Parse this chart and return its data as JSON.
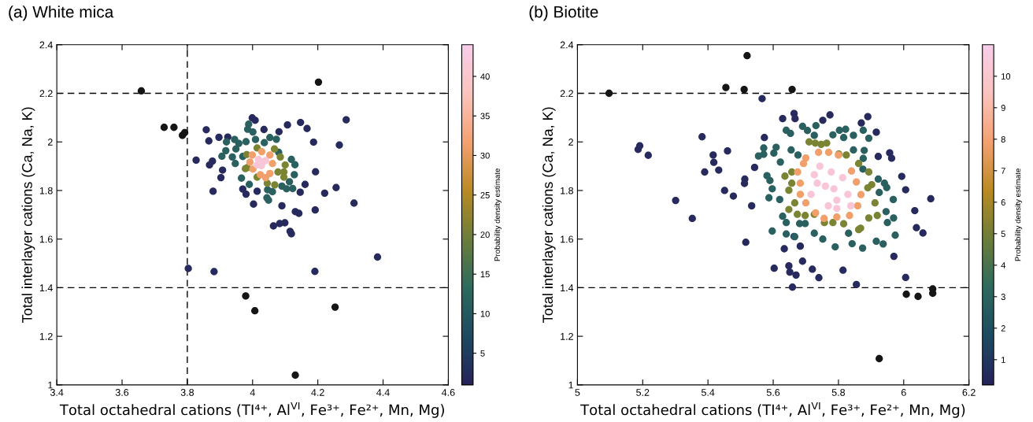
{
  "chart_data": [
    {
      "type": "scatter",
      "title": "(a) White mica",
      "xlabel": "Total octahedral cations (TI⁴⁺, Al$^{VI}$, Fe³⁺, Fe²⁺, Mn, Mg)",
      "ylabel": "Total interlayer cations (Ca, Na, K)",
      "clabel": "Probability density estimate",
      "xlim": [
        3.4,
        4.6
      ],
      "xticks": [
        3.4,
        3.6,
        3.8,
        4,
        4.2,
        4.4,
        4.6
      ],
      "ylim": [
        1,
        2.4
      ],
      "yticks": [
        1,
        1.2,
        1.4,
        1.6,
        1.8,
        2,
        2.2,
        2.4
      ],
      "clim": [
        1,
        44
      ],
      "cticks": [
        5,
        10,
        15,
        20,
        25,
        30,
        35,
        40
      ],
      "grid": false,
      "marker": "circle",
      "ref_lines": [
        {
          "axis": "y",
          "value": 2.2,
          "color": "#000000",
          "line_style": "dashed"
        },
        {
          "axis": "y",
          "value": 1.4,
          "color": "#000000",
          "line_style": "dashed"
        },
        {
          "axis": "x",
          "value": 3.8,
          "color": "#000000",
          "line_style": "dashed"
        }
      ],
      "series": [
        {
          "x": [
            3.999,
            4.008,
            4.287,
            4.147,
            4.107,
            4.167,
            3.858,
            4.035,
            4.081,
            3.897,
            3.924,
            3.866,
            4.187,
            4.266,
            3.827,
            3.877,
            3.868,
            3.908,
            3.903,
            4.193,
            3.879,
            4.161,
            4.146,
            4.221,
            4.256,
            4.311,
            4.003,
            4.09,
            4.192,
            4.131,
            4.142,
            4.064,
            4.083,
            4.099,
            4.115,
            4.119,
            4.383,
            3.803,
            3.882,
            4.191,
            4.014,
            3.98,
            3.97,
            3.988,
            3.985,
            4.001,
            4.009,
            4.053,
            4.073,
            3.945,
            3.92,
            3.958,
            3.98,
            3.918,
            3.949,
            3.938,
            3.947,
            3.97,
            3.906,
            3.966,
            3.99,
            4.113,
            4.119,
            4.13,
            4.128,
            4.09,
            4.104,
            4.123,
            4.046,
            4.061,
            4.044,
            4.049,
            4.08,
            4.036,
            3.982,
            4.014,
            4.067,
            4.085,
            4.1,
            4.096,
            4.096,
            4.014,
            3.984,
            4.045,
            4.068,
            4.078,
            3.978,
            3.999,
            4.028,
            4.053,
            4.061,
            4.053,
            4.024,
            4.001,
            3.992,
            4.04,
            4.018,
            4.031,
            4.014,
            4.027,
            4.04
          ],
          "values": [
            2.099,
            2.089,
            2.091,
            2.08,
            2.07,
            2.055,
            2.05,
            2.051,
            2.042,
            2.019,
            2.02,
            2.004,
            1.999,
            1.987,
            1.925,
            1.921,
            1.905,
            1.884,
            1.853,
            1.877,
            1.797,
            1.825,
            1.793,
            1.789,
            1.812,
            1.748,
            1.744,
            1.737,
            1.72,
            1.713,
            1.706,
            1.654,
            1.664,
            1.667,
            1.632,
            1.622,
            1.526,
            1.479,
            1.466,
            1.467,
            1.797,
            1.785,
            1.806,
            2.073,
            2.052,
            2.041,
            2.01,
            2.018,
            2.011,
            2.01,
            2.0,
            1.994,
            2.001,
            1.964,
            1.971,
            1.938,
            1.911,
            1.94,
            1.941,
            1.851,
            1.825,
            1.836,
            1.928,
            1.906,
            1.865,
            1.818,
            1.807,
            1.808,
            1.803,
            1.795,
            1.77,
            1.76,
            1.957,
            1.997,
            1.948,
            1.975,
            1.971,
            1.938,
            1.905,
            1.876,
            1.855,
            1.855,
            1.894,
            1.83,
            1.823,
            1.876,
            1.89,
            1.946,
            1.96,
            1.946,
            1.911,
            1.87,
            1.865,
            1.888,
            1.917,
            1.853,
            1.928,
            1.917,
            1.905,
            1.902,
            1.923
          ],
          "colors": [
            "#272a5c",
            "#272a5c",
            "#272a5c",
            "#272a5c",
            "#272a5c",
            "#272a5c",
            "#272a5c",
            "#272a5c",
            "#272a5c",
            "#272a5c",
            "#272a5c",
            "#272a5c",
            "#272a5c",
            "#272a5c",
            "#272a5c",
            "#272a5c",
            "#272a5c",
            "#272a5c",
            "#272a5c",
            "#272a5c",
            "#272a5c",
            "#272a5c",
            "#272a5c",
            "#272a5c",
            "#272a5c",
            "#272a5c",
            "#272a5c",
            "#272a5c",
            "#272a5c",
            "#272a5c",
            "#272a5c",
            "#272a5c",
            "#272a5c",
            "#272a5c",
            "#272a5c",
            "#272a5c",
            "#272a5c",
            "#272a5c",
            "#272a5c",
            "#272a5c",
            "#272a5c",
            "#272a5c",
            "#272a5c",
            "#2a6160",
            "#2a6160",
            "#2a6160",
            "#2a6160",
            "#2a6160",
            "#2a6160",
            "#2a6160",
            "#2a6160",
            "#2a6160",
            "#2a6160",
            "#2a6160",
            "#2a6160",
            "#2a6160",
            "#2a6160",
            "#2a6160",
            "#2a6160",
            "#2a6160",
            "#2a6160",
            "#2a6160",
            "#2a6160",
            "#2a6160",
            "#2a6160",
            "#2a6160",
            "#2a6160",
            "#2a6160",
            "#2a6160",
            "#2a6160",
            "#2a6160",
            "#2a6160",
            "#2a6160",
            "#2a6160",
            "#7b8433",
            "#7b8433",
            "#7b8433",
            "#7b8433",
            "#7b8433",
            "#7b8433",
            "#7b8433",
            "#7b8433",
            "#7b8433",
            "#7b8433",
            "#7b8433",
            "#7b8433",
            "#7b8433",
            "#f2a06b",
            "#f2a06b",
            "#f2a06b",
            "#f2a06b",
            "#f2a06b",
            "#f2a06b",
            "#f2a06b",
            "#f2a06b",
            "#f2a06b",
            "#f9c6d8",
            "#f9c6d8",
            "#f9c6d8",
            "#f9c6d8",
            "#f9c6d8"
          ]
        },
        {
          "color": "#151515",
          "x": [
            3.659,
            4.202,
            3.729,
            3.759,
            3.785,
            3.792,
            3.979,
            4.007,
            4.253,
            4.131
          ],
          "values": [
            2.21,
            2.246,
            2.06,
            2.06,
            2.027,
            2.038,
            1.366,
            1.305,
            1.32,
            1.04
          ]
        }
      ]
    },
    {
      "type": "scatter",
      "title": "(b) Biotite",
      "xlabel": "Total octahedral cations (TI⁴⁺, Al$^{VI}$, Fe³⁺, Fe²⁺, Mn, Mg)",
      "ylabel": "Total interlayer cations (Ca, Na, K)",
      "clabel": "Probability density estimate",
      "xlim": [
        5,
        6.2
      ],
      "xticks": [
        5,
        5.2,
        5.4,
        5.6,
        5.8,
        6,
        6.2
      ],
      "ylim": [
        1,
        2.4
      ],
      "yticks": [
        1,
        1.2,
        1.4,
        1.6,
        1.8,
        2,
        2.2,
        2.4
      ],
      "clim": [
        0.2,
        11
      ],
      "cticks": [
        1,
        2,
        3,
        4,
        5,
        6,
        7,
        8,
        9,
        10
      ],
      "grid": false,
      "marker": "circle",
      "ref_lines": [
        {
          "axis": "y",
          "value": 2.2,
          "color": "#000000",
          "line_style": "dashed"
        },
        {
          "axis": "y",
          "value": 1.4,
          "color": "#000000",
          "line_style": "dashed"
        }
      ],
      "series": [
        {
          "x": [
            5.566,
            5.186,
            5.191,
            5.217,
            5.382,
            5.416,
            5.418,
            5.433,
            5.46,
            5.39,
            5.301,
            5.352,
            5.451,
            5.478,
            5.516,
            5.534,
            5.543,
            5.573,
            5.629,
            5.664,
            5.667,
            5.774,
            5.752,
            5.89,
            5.87,
            5.916,
            5.922,
            5.957,
            5.963,
            5.994,
            6.006,
            6.083,
            6.034,
            6.039,
            6.059,
            5.97,
            6.006,
            5.855,
            5.814,
            5.74,
            5.72,
            5.69,
            5.67,
            5.651,
            5.648,
            5.659,
            5.603,
            5.634,
            5.683,
            5.664,
            5.513,
            5.512,
            5.69,
            5.705,
            5.731,
            5.803,
            5.822,
            5.783,
            5.816,
            5.846,
            5.876,
            5.893,
            5.64,
            5.653,
            5.726,
            5.571,
            5.609,
            5.602,
            5.555,
            5.571,
            5.655,
            5.676,
            5.846,
            5.879,
            5.876,
            5.922,
            5.941,
            5.948,
            5.925,
            5.968,
            5.581,
            5.59,
            5.597,
            5.587,
            5.62,
            5.629,
            5.64,
            5.64,
            5.597,
            5.666,
            5.726,
            5.752,
            5.79,
            5.831,
            5.842,
            5.874,
            5.916,
            5.937,
            5.974,
            5.969,
            5.946,
            5.95,
            5.681,
            5.698,
            5.622,
            5.875,
            5.71,
            5.729,
            5.747,
            5.764,
            5.801,
            5.824,
            5.862,
            5.893,
            5.902,
            5.89,
            5.912,
            5.919,
            5.893,
            5.868,
            5.657,
            5.636,
            5.657,
            5.648,
            5.666,
            5.648,
            5.674,
            5.698,
            5.726,
            5.757,
            5.783,
            5.816,
            5.862,
            5.7,
            5.739,
            5.77,
            5.8,
            5.84,
            5.855,
            5.869,
            5.859,
            5.834,
            5.795,
            5.756,
            5.73,
            5.7,
            5.683,
            5.683,
            5.675,
            5.693,
            5.743,
            5.778,
            5.813,
            5.786,
            5.76,
            5.735,
            5.795,
            5.829,
            5.769,
            5.716,
            5.838,
            5.795,
            5.726
          ],
          "values": [
            2.178,
            1.969,
            1.984,
            1.945,
            2.021,
            1.946,
            1.916,
            1.884,
            1.963,
            1.876,
            1.759,
            1.685,
            1.8,
            1.777,
            1.587,
            1.737,
            1.895,
            2.018,
            2.096,
            2.117,
            2.096,
            2.111,
            2.089,
            2.104,
            2.078,
            2.04,
            1.94,
            1.955,
            1.933,
            1.858,
            1.803,
            1.766,
            1.717,
            1.647,
            1.625,
            1.529,
            1.442,
            1.413,
            1.472,
            1.441,
            1.476,
            1.509,
            1.452,
            1.464,
            1.49,
            1.402,
            1.48,
            1.56,
            1.571,
            1.611,
            1.847,
            1.829,
            2.064,
            2.047,
            2.067,
            2.048,
            2.052,
            2.029,
            2.018,
            2.027,
            2.048,
            2.015,
            2.048,
            2.035,
            2.027,
            1.975,
            1.978,
            1.954,
            1.942,
            1.949,
            1.967,
            1.946,
            1.967,
            1.965,
            1.932,
            1.847,
            1.83,
            1.812,
            1.792,
            1.763,
            1.861,
            1.841,
            1.807,
            1.77,
            1.763,
            1.694,
            1.668,
            1.621,
            1.633,
            1.61,
            1.624,
            1.6,
            1.568,
            1.624,
            1.581,
            1.563,
            1.591,
            1.58,
            1.616,
            1.687,
            1.713,
            1.668,
            1.664,
            1.664,
            1.917,
            1.888,
            2.0,
            1.995,
            1.99,
            1.995,
            1.95,
            1.946,
            1.911,
            1.876,
            1.824,
            1.811,
            1.749,
            1.697,
            1.687,
            1.645,
            1.876,
            1.859,
            1.83,
            1.801,
            1.749,
            1.722,
            1.702,
            1.697,
            1.702,
            1.668,
            1.668,
            1.663,
            1.639,
            1.934,
            1.957,
            1.957,
            1.946,
            1.88,
            1.835,
            1.783,
            1.737,
            1.697,
            1.691,
            1.685,
            1.708,
            1.749,
            1.784,
            1.83,
            1.876,
            1.911,
            1.9,
            1.876,
            1.853,
            1.807,
            1.818,
            1.83,
            1.76,
            1.784,
            1.737,
            1.784,
            1.737,
            1.726,
            1.865
          ],
          "colors": [
            "#272a5c",
            "#272a5c",
            "#272a5c",
            "#272a5c",
            "#272a5c",
            "#272a5c",
            "#272a5c",
            "#272a5c",
            "#272a5c",
            "#272a5c",
            "#272a5c",
            "#272a5c",
            "#272a5c",
            "#272a5c",
            "#272a5c",
            "#272a5c",
            "#272a5c",
            "#272a5c",
            "#272a5c",
            "#272a5c",
            "#272a5c",
            "#272a5c",
            "#272a5c",
            "#272a5c",
            "#272a5c",
            "#272a5c",
            "#272a5c",
            "#272a5c",
            "#272a5c",
            "#272a5c",
            "#272a5c",
            "#272a5c",
            "#272a5c",
            "#272a5c",
            "#272a5c",
            "#272a5c",
            "#272a5c",
            "#272a5c",
            "#272a5c",
            "#272a5c",
            "#272a5c",
            "#272a5c",
            "#272a5c",
            "#272a5c",
            "#272a5c",
            "#272a5c",
            "#272a5c",
            "#272a5c",
            "#272a5c",
            "#272a5c",
            "#272a5c",
            "#272a5c",
            "#2a6160",
            "#2a6160",
            "#2a6160",
            "#2a6160",
            "#2a6160",
            "#2a6160",
            "#2a6160",
            "#2a6160",
            "#2a6160",
            "#2a6160",
            "#2a6160",
            "#2a6160",
            "#2a6160",
            "#2a6160",
            "#2a6160",
            "#2a6160",
            "#2a6160",
            "#2a6160",
            "#2a6160",
            "#2a6160",
            "#2a6160",
            "#2a6160",
            "#2a6160",
            "#2a6160",
            "#2a6160",
            "#2a6160",
            "#2a6160",
            "#2a6160",
            "#2a6160",
            "#2a6160",
            "#2a6160",
            "#2a6160",
            "#2a6160",
            "#2a6160",
            "#2a6160",
            "#2a6160",
            "#2a6160",
            "#2a6160",
            "#2a6160",
            "#2a6160",
            "#2a6160",
            "#2a6160",
            "#2a6160",
            "#2a6160",
            "#2a6160",
            "#2a6160",
            "#2a6160",
            "#2a6160",
            "#2a6160",
            "#2a6160",
            "#2a6160",
            "#2a6160",
            "#2a6160",
            "#2a6160",
            "#7b8433",
            "#7b8433",
            "#7b8433",
            "#7b8433",
            "#7b8433",
            "#7b8433",
            "#7b8433",
            "#7b8433",
            "#7b8433",
            "#7b8433",
            "#7b8433",
            "#7b8433",
            "#7b8433",
            "#7b8433",
            "#7b8433",
            "#7b8433",
            "#7b8433",
            "#7b8433",
            "#7b8433",
            "#7b8433",
            "#7b8433",
            "#7b8433",
            "#7b8433",
            "#7b8433",
            "#7b8433",
            "#7b8433",
            "#7b8433",
            "#f2a06b",
            "#f2a06b",
            "#f2a06b",
            "#f2a06b",
            "#f2a06b",
            "#f2a06b",
            "#f2a06b",
            "#f2a06b",
            "#f2a06b",
            "#f2a06b",
            "#f2a06b",
            "#f2a06b",
            "#f2a06b",
            "#f2a06b",
            "#f2a06b",
            "#f2a06b",
            "#f2a06b",
            "#f9c6d8",
            "#f9c6d8",
            "#f9c6d8",
            "#f9c6d8",
            "#f9c6d8",
            "#f9c6d8",
            "#f9c6d8",
            "#f9c6d8",
            "#f9c6d8",
            "#f9c6d8",
            "#f9c6d8",
            "#f9c6d8",
            "#f9c6d8"
          ]
        },
        {
          "color": "#151515",
          "x": [
            5.097,
            5.52,
            5.455,
            5.511,
            5.658,
            6.008,
            6.044,
            6.089,
            6.089,
            5.925
          ],
          "values": [
            2.2,
            2.355,
            2.224,
            2.216,
            2.216,
            1.373,
            1.364,
            1.395,
            1.377,
            1.108
          ]
        }
      ]
    }
  ]
}
